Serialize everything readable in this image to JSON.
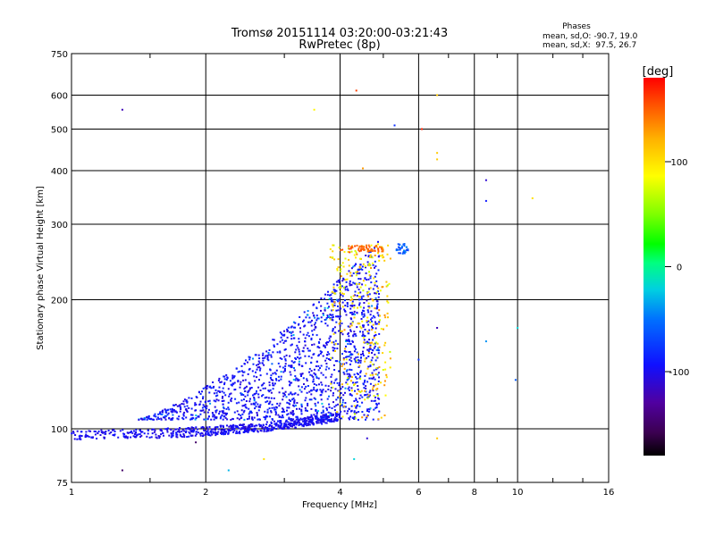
{
  "chart_data": {
    "type": "scatter",
    "title": "Tromsø 20151114 03:20:00-03:21:43",
    "subtitle": "RwPretec (8p)",
    "xlabel": "Frequency [MHz]",
    "ylabel": "Stationary phase Virtual Height [km]",
    "x_scale": "log",
    "y_scale": "log",
    "xlim": [
      1,
      16
    ],
    "ylim": [
      75,
      750
    ],
    "x_ticks": [
      "1",
      "2",
      "4",
      "6",
      "8",
      "10",
      "16"
    ],
    "y_ticks": [
      "75",
      "100",
      "200",
      "300",
      "400",
      "500",
      "600",
      "750"
    ],
    "grid": true,
    "stats": {
      "heading": "Phases",
      "line_o": "mean, sd,O: -90.7, 19.0",
      "line_x": "mean, sd,X:  97.5, 26.7"
    },
    "colorbar": {
      "label": "[deg]",
      "range": [
        -180,
        180
      ],
      "ticks": [
        "100",
        "0",
        "-100"
      ]
    },
    "sample_points": [
      {
        "x": 1.02,
        "y": 97,
        "phase": -100
      },
      {
        "x": 1.3,
        "y": 101,
        "phase": -110
      },
      {
        "x": 1.6,
        "y": 103,
        "phase": -100
      },
      {
        "x": 2.0,
        "y": 101,
        "phase": -95
      },
      {
        "x": 2.6,
        "y": 108,
        "phase": -110
      },
      {
        "x": 3.3,
        "y": 110,
        "phase": -95
      },
      {
        "x": 4.0,
        "y": 112,
        "phase": -100
      },
      {
        "x": 4.6,
        "y": 120,
        "phase": 100
      },
      {
        "x": 4.9,
        "y": 265,
        "phase": 150
      },
      {
        "x": 4.5,
        "y": 620,
        "phase": 170
      },
      {
        "x": 8.5,
        "y": 380,
        "phase": -110
      },
      {
        "x": 10.8,
        "y": 345,
        "phase": 100
      }
    ]
  }
}
